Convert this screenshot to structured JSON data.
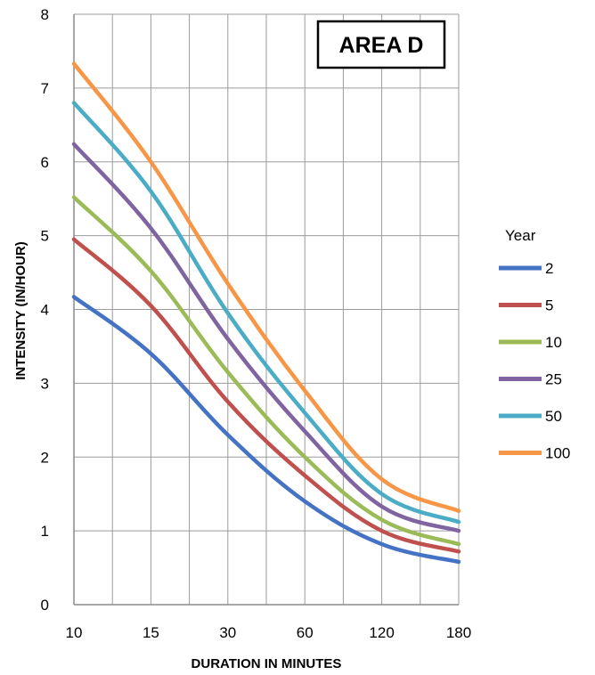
{
  "chart_data": {
    "type": "line",
    "title": "AREA D",
    "xlabel": "DURATION IN MINUTES",
    "ylabel": "INTENSITY (IN/HOUR)",
    "x_tick_labels": [
      "10",
      "15",
      "30",
      "60",
      "120",
      "180"
    ],
    "y_ticks": [
      0,
      1,
      2,
      3,
      4,
      5,
      6,
      7,
      8
    ],
    "ylim": [
      0,
      8
    ],
    "grid": true,
    "legend_title": "Year",
    "legend_position": "right",
    "x_values": [
      10,
      15,
      30,
      60,
      120,
      180
    ],
    "series": [
      {
        "name": "2",
        "color": "#4472C4",
        "values": [
          4.17,
          3.4,
          2.3,
          1.4,
          0.82,
          0.58
        ]
      },
      {
        "name": "5",
        "color": "#C0504D",
        "values": [
          4.95,
          4.05,
          2.75,
          1.75,
          1.0,
          0.72
        ]
      },
      {
        "name": "10",
        "color": "#9BBB59",
        "values": [
          5.52,
          4.52,
          3.15,
          2.0,
          1.15,
          0.82
        ]
      },
      {
        "name": "25",
        "color": "#8064A2",
        "values": [
          6.24,
          5.1,
          3.6,
          2.35,
          1.33,
          1.0
        ]
      },
      {
        "name": "50",
        "color": "#4BACC6",
        "values": [
          6.8,
          5.6,
          3.95,
          2.6,
          1.5,
          1.12
        ]
      },
      {
        "name": "100",
        "color": "#F79646",
        "values": [
          7.33,
          6.0,
          4.35,
          2.9,
          1.7,
          1.27
        ]
      }
    ]
  }
}
